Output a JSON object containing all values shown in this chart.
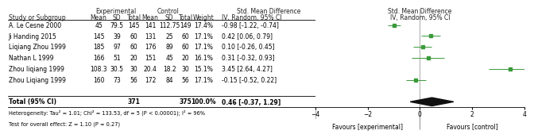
{
  "studies": [
    {
      "label": "A. Le Cesne 2000",
      "exp_mean": "45",
      "exp_sd": "79.5",
      "exp_n": "145",
      "ctrl_mean": "141",
      "ctrl_sd": "112.75",
      "ctrl_n": "149",
      "weight": "17.4%",
      "smd": -0.98,
      "ci_low": -1.22,
      "ci_high": -0.74,
      "smd_str": "-0.98 [-1.22, -0.74]"
    },
    {
      "label": "Ji Handing 2015",
      "exp_mean": "145",
      "exp_sd": "39",
      "exp_n": "60",
      "ctrl_mean": "131",
      "ctrl_sd": "25",
      "ctrl_n": "60",
      "weight": "17.1%",
      "smd": 0.42,
      "ci_low": 0.06,
      "ci_high": 0.79,
      "smd_str": "0.42 [0.06, 0.79]"
    },
    {
      "label": "Liqiang Zhou 1999",
      "exp_mean": "185",
      "exp_sd": "97",
      "exp_n": "60",
      "ctrl_mean": "176",
      "ctrl_sd": "89",
      "ctrl_n": "60",
      "weight": "17.1%",
      "smd": 0.1,
      "ci_low": -0.26,
      "ci_high": 0.45,
      "smd_str": "0.10 [-0.26, 0.45]"
    },
    {
      "label": "Nathan L 1999",
      "exp_mean": "166",
      "exp_sd": "51",
      "exp_n": "20",
      "ctrl_mean": "151",
      "ctrl_sd": "45",
      "ctrl_n": "20",
      "weight": "16.1%",
      "smd": 0.31,
      "ci_low": -0.32,
      "ci_high": 0.93,
      "smd_str": "0.31 [-0.32, 0.93]"
    },
    {
      "label": "Zhou liqiang 1999",
      "exp_mean": "108.3",
      "exp_sd": "30.5",
      "exp_n": "30",
      "ctrl_mean": "20.4",
      "ctrl_sd": "18.2",
      "ctrl_n": "30",
      "weight": "15.1%",
      "smd": 3.45,
      "ci_low": 2.64,
      "ci_high": 4.27,
      "smd_str": "3.45 [2.64, 4.27]"
    },
    {
      "label": "Zhou Liqiang 1999",
      "exp_mean": "160",
      "exp_sd": "73",
      "exp_n": "56",
      "ctrl_mean": "172",
      "ctrl_sd": "84",
      "ctrl_n": "56",
      "weight": "17.1%",
      "smd": -0.15,
      "ci_low": -0.52,
      "ci_high": 0.22,
      "smd_str": "-0.15 [-0.52, 0.22]"
    }
  ],
  "total": {
    "exp_n": "371",
    "ctrl_n": "375",
    "weight": "100.0%",
    "smd": 0.46,
    "ci_low": -0.37,
    "ci_high": 1.29,
    "smd_str": "0.46 [-0.37, 1.29]"
  },
  "heterogeneity": "Heterogeneity: Tau² = 1.01; Chi² = 133.53, df = 5 (P < 0.00001); I² = 96%",
  "overall_effect": "Test for overall effect: Z = 1.10 (P = 0.27)",
  "axis_xlim": [
    -4,
    4
  ],
  "axis_xticks": [
    -4,
    -2,
    0,
    2,
    4
  ],
  "xlabel_left": "Favours [experimental]",
  "xlabel_right": "Favours [control]",
  "marker_color": "#3a9a3a",
  "diamond_color": "#111111",
  "text_color": "#000000",
  "bg_color": "#ffffff",
  "table_pct": 0.595,
  "plot_pct": 0.405
}
